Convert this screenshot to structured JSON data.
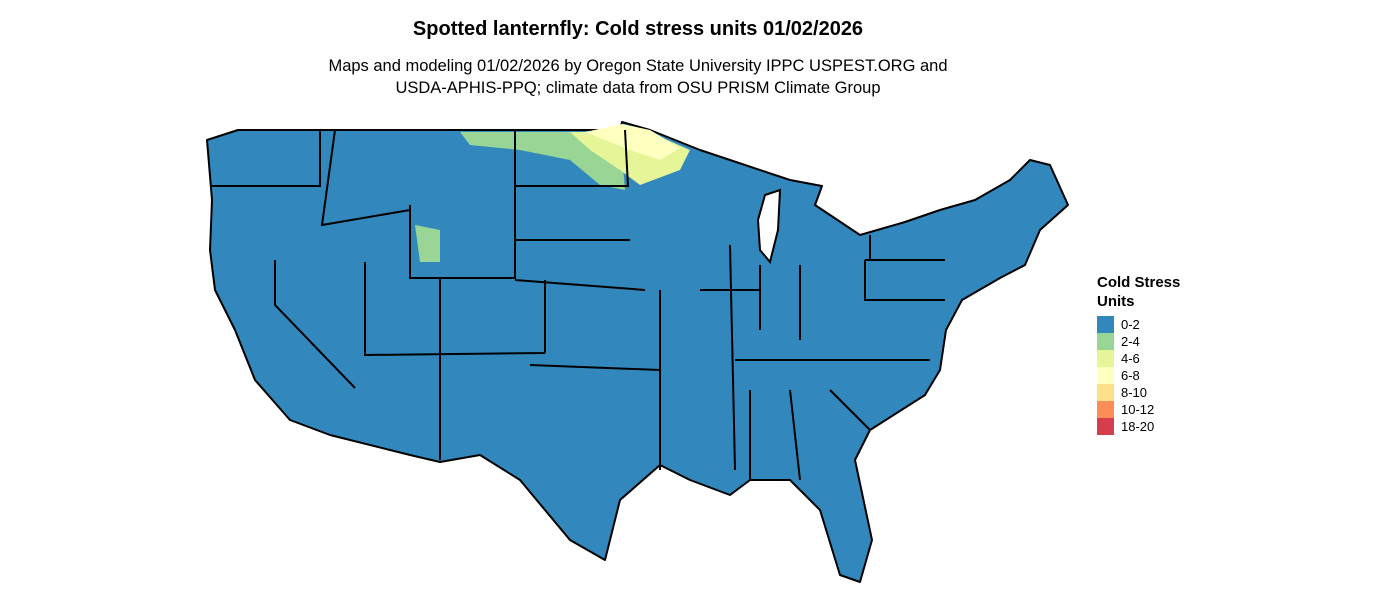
{
  "header": {
    "title": "Spotted lanternfly: Cold stress units 01/02/2026",
    "subtitle_lines": [
      "Maps and modeling 01/02/2026 by Oregon State University IPPC USPEST.ORG and",
      "USDA-APHIS-PPQ; climate data from OSU PRISM Climate Group"
    ]
  },
  "legend": {
    "title": "Cold Stress Units",
    "items": [
      {
        "label": "0-2",
        "color": "#3288bd"
      },
      {
        "label": "2-4",
        "color": "#99d594"
      },
      {
        "label": "4-6",
        "color": "#e6f598"
      },
      {
        "label": "6-8",
        "color": "#ffffbf"
      },
      {
        "label": "8-10",
        "color": "#fee08b"
      },
      {
        "label": "10-12",
        "color": "#fc8d59"
      },
      {
        "label": "18-20",
        "color": "#d53e4f"
      }
    ]
  }
}
